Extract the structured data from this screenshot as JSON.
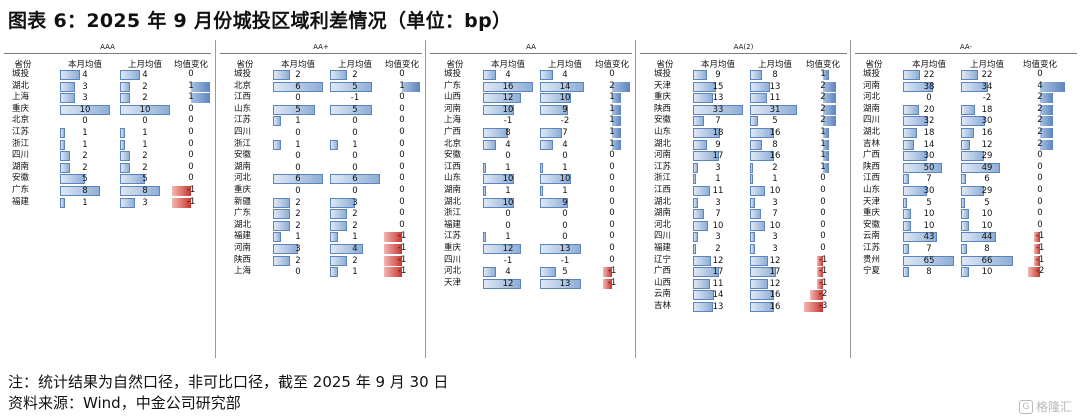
{
  "title": "图表 6：2025 年 9 月份城投区域利差情况（单位：bp）",
  "columns": {
    "province": "省份",
    "this_month": "本月均值",
    "last_month": "上月均值",
    "change": "均值变化"
  },
  "sections": [
    {
      "title": "AAA",
      "rows": [
        {
          "p": "城投",
          "c": 4,
          "l": 4,
          "d": 0
        },
        {
          "p": "湖北",
          "c": 3,
          "l": 2,
          "d": 1
        },
        {
          "p": "上海",
          "c": 3,
          "l": 2,
          "d": 1
        },
        {
          "p": "重庆",
          "c": 10,
          "l": 10,
          "d": 0
        },
        {
          "p": "北京",
          "c": 0,
          "l": 0,
          "d": 0
        },
        {
          "p": "江苏",
          "c": 1,
          "l": 1,
          "d": 0
        },
        {
          "p": "浙江",
          "c": 1,
          "l": 1,
          "d": 0
        },
        {
          "p": "四川",
          "c": 2,
          "l": 2,
          "d": 0
        },
        {
          "p": "湖南",
          "c": 2,
          "l": 2,
          "d": 0
        },
        {
          "p": "安徽",
          "c": 5,
          "l": 5,
          "d": 0
        },
        {
          "p": "广东",
          "c": 8,
          "l": 8,
          "d": -1
        },
        {
          "p": "福建",
          "c": 1,
          "l": 3,
          "d": -1
        }
      ]
    },
    {
      "title": "AA+",
      "rows": [
        {
          "p": "城投",
          "c": 2,
          "l": 2,
          "d": 0
        },
        {
          "p": "北京",
          "c": 6,
          "l": 5,
          "d": 1
        },
        {
          "p": "江西",
          "c": 0,
          "l": -1,
          "d": 0
        },
        {
          "p": "山东",
          "c": 5,
          "l": 5,
          "d": 0
        },
        {
          "p": "江苏",
          "c": 1,
          "l": 0,
          "d": 0
        },
        {
          "p": "四川",
          "c": 0,
          "l": 0,
          "d": 0
        },
        {
          "p": "浙江",
          "c": 1,
          "l": 1,
          "d": 0
        },
        {
          "p": "安徽",
          "c": 0,
          "l": 0,
          "d": 0
        },
        {
          "p": "湖南",
          "c": 0,
          "l": 0,
          "d": 0
        },
        {
          "p": "河北",
          "c": 6,
          "l": 6,
          "d": 0
        },
        {
          "p": "重庆",
          "c": 0,
          "l": 0,
          "d": 0
        },
        {
          "p": "新疆",
          "c": 2,
          "l": 3,
          "d": 0
        },
        {
          "p": "广东",
          "c": 2,
          "l": 2,
          "d": 0
        },
        {
          "p": "湖北",
          "c": 2,
          "l": 2,
          "d": 0
        },
        {
          "p": "福建",
          "c": 1,
          "l": 1,
          "d": -1
        },
        {
          "p": "河南",
          "c": 3,
          "l": 4,
          "d": -1
        },
        {
          "p": "陕西",
          "c": 2,
          "l": 2,
          "d": -1
        },
        {
          "p": "上海",
          "c": 0,
          "l": 1,
          "d": -1
        }
      ]
    },
    {
      "title": "AA",
      "rows": [
        {
          "p": "城投",
          "c": 4,
          "l": 4,
          "d": 0
        },
        {
          "p": "广东",
          "c": 16,
          "l": 14,
          "d": 2
        },
        {
          "p": "山西",
          "c": 12,
          "l": 10,
          "d": 1
        },
        {
          "p": "河南",
          "c": 10,
          "l": 9,
          "d": 1
        },
        {
          "p": "上海",
          "c": -1,
          "l": -2,
          "d": 1
        },
        {
          "p": "广西",
          "c": 8,
          "l": 7,
          "d": 1
        },
        {
          "p": "北京",
          "c": 4,
          "l": 4,
          "d": 1
        },
        {
          "p": "安徽",
          "c": 0,
          "l": 0,
          "d": 0
        },
        {
          "p": "江西",
          "c": 1,
          "l": 1,
          "d": 0
        },
        {
          "p": "山东",
          "c": 10,
          "l": 10,
          "d": 0
        },
        {
          "p": "湖南",
          "c": 1,
          "l": 1,
          "d": 0
        },
        {
          "p": "湖北",
          "c": 10,
          "l": 9,
          "d": 0
        },
        {
          "p": "浙江",
          "c": 0,
          "l": 0,
          "d": 0
        },
        {
          "p": "福建",
          "c": 0,
          "l": 0,
          "d": 0
        },
        {
          "p": "江苏",
          "c": 1,
          "l": 0,
          "d": 0
        },
        {
          "p": "重庆",
          "c": 12,
          "l": 13,
          "d": 0
        },
        {
          "p": "四川",
          "c": -1,
          "l": -1,
          "d": 0
        },
        {
          "p": "河北",
          "c": 4,
          "l": 5,
          "d": -1
        },
        {
          "p": "天津",
          "c": 12,
          "l": 13,
          "d": -1
        }
      ]
    },
    {
      "title": "AA(2)",
      "rows": [
        {
          "p": "城投",
          "c": 9,
          "l": 8,
          "d": 1
        },
        {
          "p": "天津",
          "c": 15,
          "l": 13,
          "d": 2
        },
        {
          "p": "重庆",
          "c": 13,
          "l": 11,
          "d": 2
        },
        {
          "p": "陕西",
          "c": 33,
          "l": 31,
          "d": 2
        },
        {
          "p": "安徽",
          "c": 7,
          "l": 5,
          "d": 2
        },
        {
          "p": "山东",
          "c": 18,
          "l": 16,
          "d": 1
        },
        {
          "p": "湖北",
          "c": 9,
          "l": 8,
          "d": 1
        },
        {
          "p": "河南",
          "c": 17,
          "l": 16,
          "d": 1
        },
        {
          "p": "江苏",
          "c": 3,
          "l": 2,
          "d": 1
        },
        {
          "p": "浙江",
          "c": 1,
          "l": 1,
          "d": 0
        },
        {
          "p": "江西",
          "c": 11,
          "l": 10,
          "d": 0
        },
        {
          "p": "湖北",
          "c": 3,
          "l": 3,
          "d": 0
        },
        {
          "p": "湖南",
          "c": 7,
          "l": 7,
          "d": 0
        },
        {
          "p": "河北",
          "c": 10,
          "l": 10,
          "d": 0
        },
        {
          "p": "四川",
          "c": 3,
          "l": 3,
          "d": 0
        },
        {
          "p": "福建",
          "c": 2,
          "l": 3,
          "d": 0
        },
        {
          "p": "辽宁",
          "c": 12,
          "l": 12,
          "d": -1
        },
        {
          "p": "广西",
          "c": 17,
          "l": 17,
          "d": -1
        },
        {
          "p": "山西",
          "c": 11,
          "l": 12,
          "d": -1
        },
        {
          "p": "云南",
          "c": 14,
          "l": 16,
          "d": -2
        },
        {
          "p": "吉林",
          "c": 13,
          "l": 16,
          "d": -3
        }
      ]
    },
    {
      "title": "AA-",
      "rows": [
        {
          "p": "城投",
          "c": 22,
          "l": 22,
          "d": 0
        },
        {
          "p": "河南",
          "c": 38,
          "l": 34,
          "d": 4
        },
        {
          "p": "河北",
          "c": 0,
          "l": -2,
          "d": 2
        },
        {
          "p": "湖南",
          "c": 20,
          "l": 18,
          "d": 2
        },
        {
          "p": "四川",
          "c": 32,
          "l": 30,
          "d": 2
        },
        {
          "p": "湖北",
          "c": 18,
          "l": 16,
          "d": 2
        },
        {
          "p": "吉林",
          "c": 14,
          "l": 12,
          "d": 2
        },
        {
          "p": "广西",
          "c": 30,
          "l": 29,
          "d": 0
        },
        {
          "p": "陕西",
          "c": 50,
          "l": 49,
          "d": 0
        },
        {
          "p": "江西",
          "c": 7,
          "l": 6,
          "d": 0
        },
        {
          "p": "山东",
          "c": 30,
          "l": 29,
          "d": 0
        },
        {
          "p": "天津",
          "c": 5,
          "l": 5,
          "d": 0
        },
        {
          "p": "重庆",
          "c": 10,
          "l": 10,
          "d": 0
        },
        {
          "p": "安徽",
          "c": 10,
          "l": 10,
          "d": 0
        },
        {
          "p": "云南",
          "c": 43,
          "l": 44,
          "d": -1
        },
        {
          "p": "江苏",
          "c": 7,
          "l": 8,
          "d": -1
        },
        {
          "p": "贵州",
          "c": 65,
          "l": 66,
          "d": -1
        },
        {
          "p": "宁夏",
          "c": 8,
          "l": 10,
          "d": -2
        }
      ]
    }
  ],
  "note": "注：统计结果为自然口径，非可比口径，截至 2025 年 9 月 30 日",
  "source": "资料来源：Wind，中金公司研究部",
  "watermark": "格隆汇",
  "watermark_icon": "gelonghui-logo-icon"
}
